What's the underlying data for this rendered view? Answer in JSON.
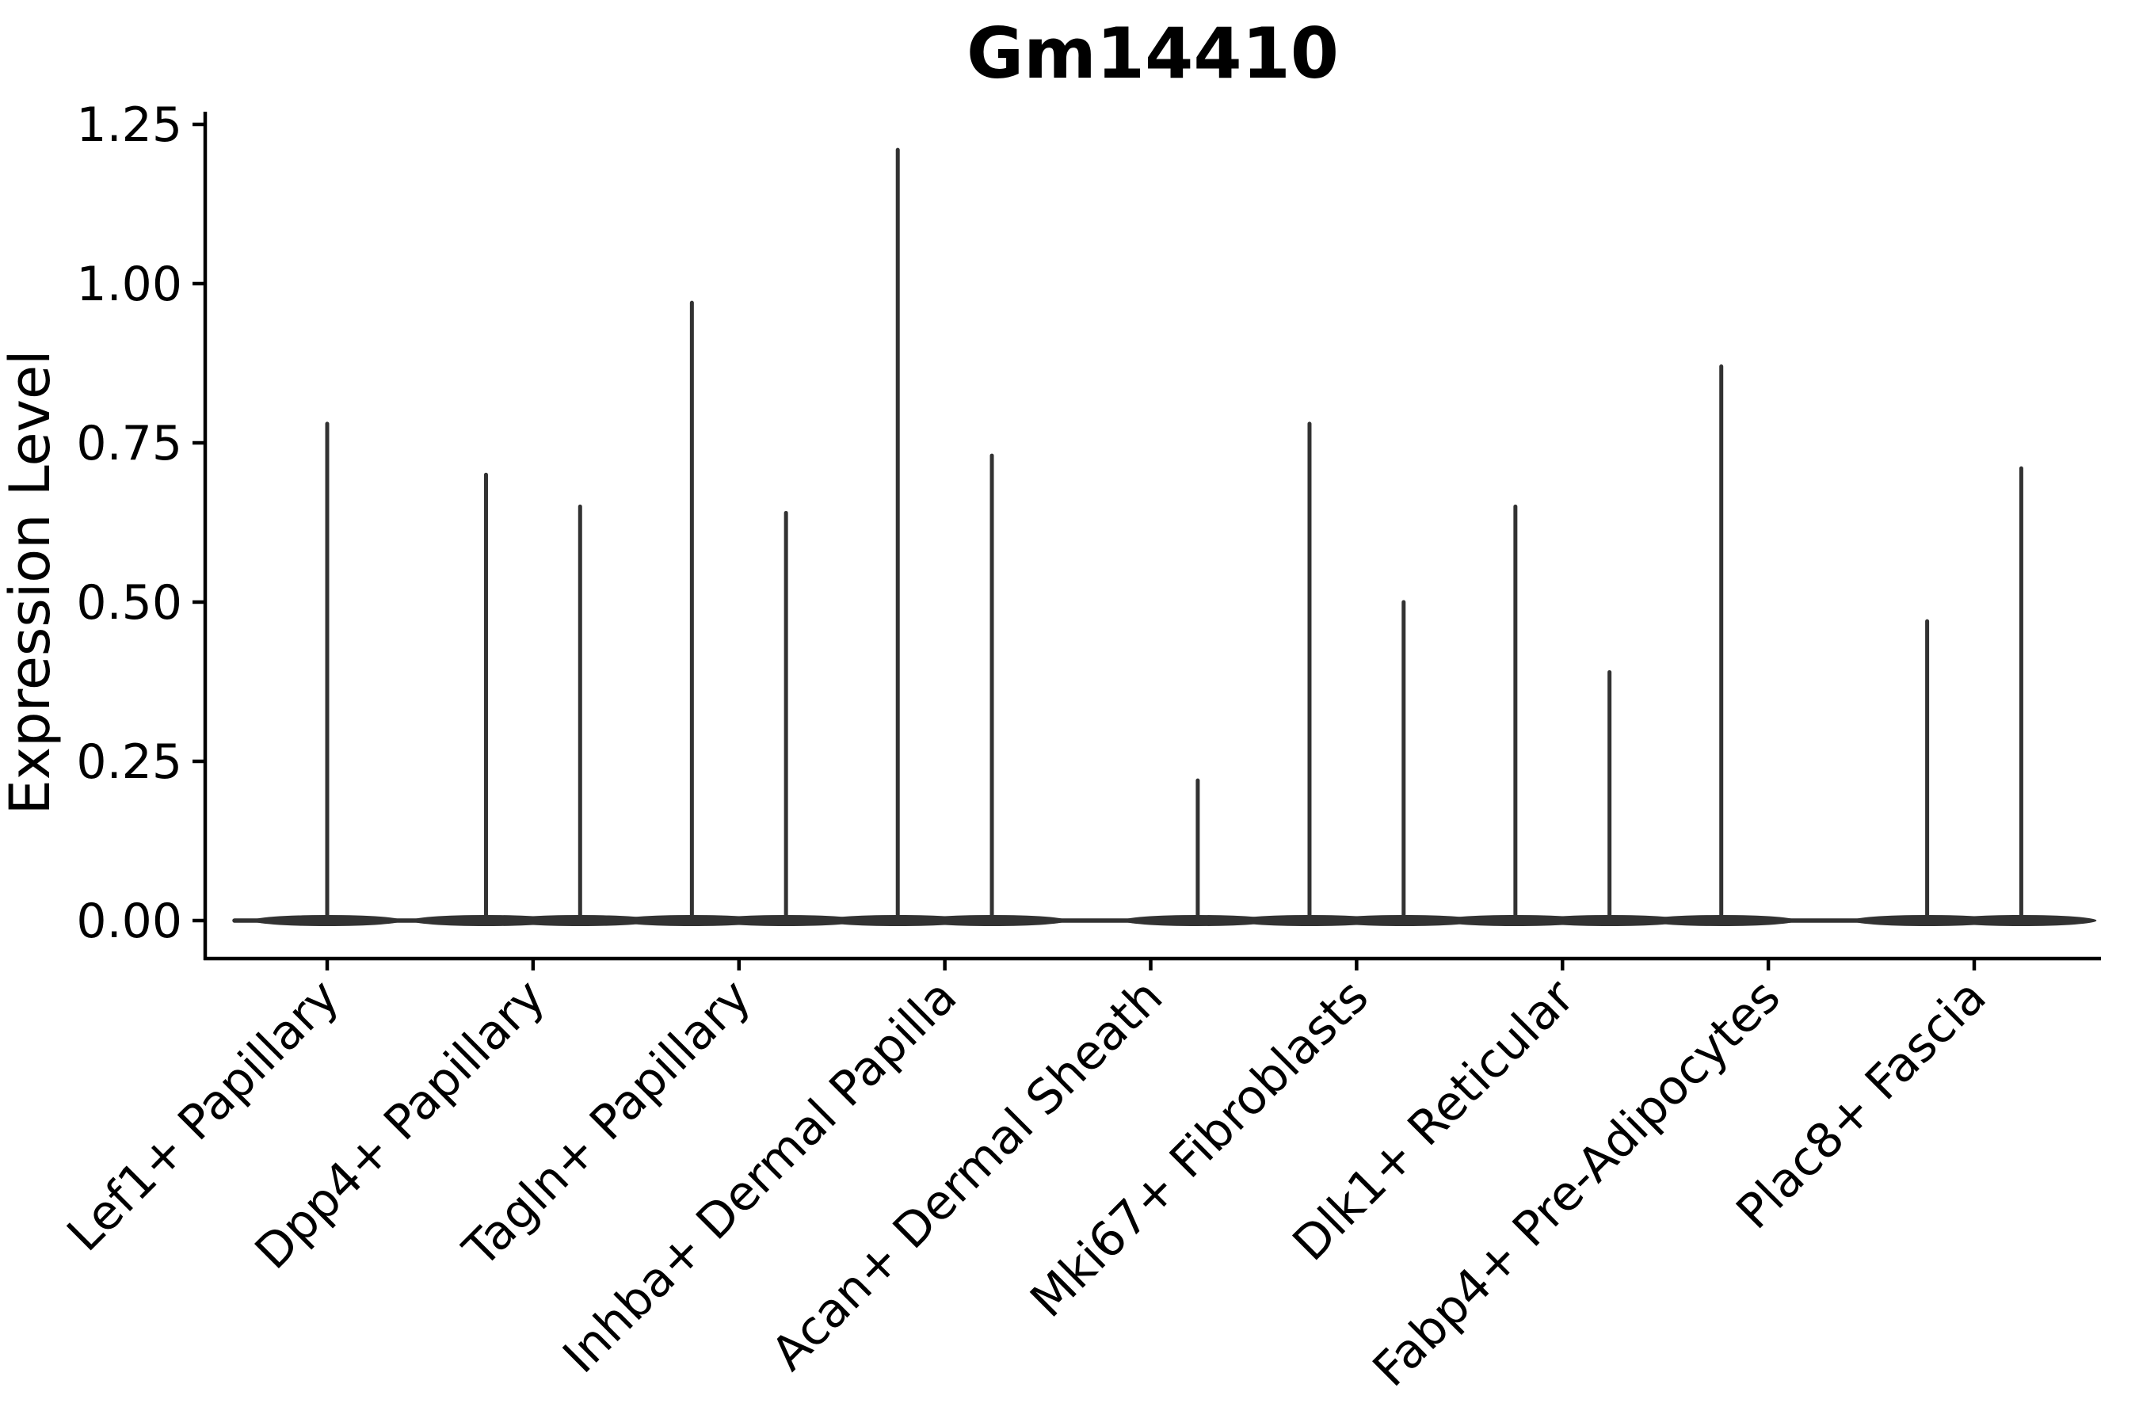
{
  "title": "Gm14410",
  "axes": {
    "ylabel": "Expression Level",
    "ytick_labels": [
      "0.00",
      "0.25",
      "0.50",
      "0.75",
      "1.00",
      "1.25"
    ],
    "ytick_values": [
      0,
      0.25,
      0.5,
      0.75,
      1.0,
      1.25
    ]
  },
  "chart_data": {
    "type": "violin",
    "title": "Gm14410",
    "xlabel": "",
    "ylabel": "Expression Level",
    "ylim": [
      0,
      1.25
    ],
    "yticks": [
      0,
      0.25,
      0.5,
      0.75,
      1.0,
      1.25
    ],
    "grid": false,
    "legend": "none",
    "description": "Single-cell expression violin plot; each violin is a flat density bump at 0 with thin vertical spikes reaching the maximum expression of the few expressing cells. Spike position is the sub-violin center: left/right half of the category slot, or center when a single violin fills the slot.",
    "violin_color": "#323232",
    "axis_color": "#000000",
    "categories": [
      "Lef1+ Papillary",
      "Dpp4+ Papillary",
      "Tagln+ Papillary",
      "Inhba+ Dermal Papilla",
      "Acan+ Dermal Sheath",
      "Mki67+ Fibroblasts",
      "Dlk1+ Reticular",
      "Fabp4+ Pre-Adipocytes",
      "Plac8+ Fascia"
    ],
    "series": [
      {
        "category": "Lef1+ Papillary",
        "spikes": [
          {
            "position": "center",
            "max": 0.78
          }
        ]
      },
      {
        "category": "Dpp4+ Papillary",
        "spikes": [
          {
            "position": "left",
            "max": 0.7
          },
          {
            "position": "right",
            "max": 0.65
          }
        ]
      },
      {
        "category": "Tagln+ Papillary",
        "spikes": [
          {
            "position": "left",
            "max": 0.97
          },
          {
            "position": "right",
            "max": 0.64
          }
        ]
      },
      {
        "category": "Inhba+ Dermal Papilla",
        "spikes": [
          {
            "position": "left",
            "max": 1.21
          },
          {
            "position": "right",
            "max": 0.73
          }
        ]
      },
      {
        "category": "Acan+ Dermal Sheath",
        "spikes": [
          {
            "position": "right",
            "max": 0.22
          }
        ]
      },
      {
        "category": "Mki67+ Fibroblasts",
        "spikes": [
          {
            "position": "left",
            "max": 0.78
          },
          {
            "position": "right",
            "max": 0.5
          }
        ]
      },
      {
        "category": "Dlk1+ Reticular",
        "spikes": [
          {
            "position": "left",
            "max": 0.65
          },
          {
            "position": "right",
            "max": 0.39
          }
        ]
      },
      {
        "category": "Fabp4+ Pre-Adipocytes",
        "spikes": [
          {
            "position": "left",
            "max": 0.87
          }
        ]
      },
      {
        "category": "Plac8+ Fascia",
        "spikes": [
          {
            "position": "left",
            "max": 0.47
          },
          {
            "position": "right",
            "max": 0.71
          }
        ]
      }
    ]
  }
}
